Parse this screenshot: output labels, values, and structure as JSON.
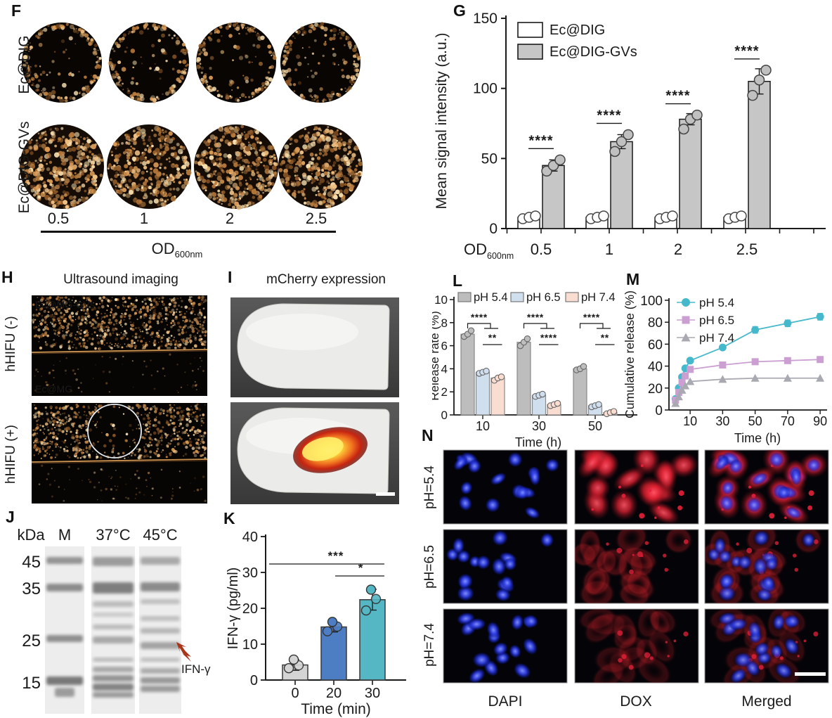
{
  "panels": {
    "F": {
      "label": "F",
      "row_labels": [
        "Ec@DIG",
        "Ec@DIG-GVs"
      ],
      "col_labels": [
        "0.5",
        "1",
        "2",
        "2.5"
      ],
      "axis_label": "OD",
      "axis_label_sub": "600nm"
    },
    "G": {
      "label": "G"
    },
    "H": {
      "label": "H",
      "title": "Ultrasound imaging",
      "row_labels": [
        "hHIFU (-)",
        "hHIFU (+)"
      ],
      "image_labels": [
        "Ec@MG-GVs",
        "Ec@MG"
      ]
    },
    "I": {
      "label": "I",
      "title": "mCherry expression"
    },
    "J": {
      "label": "J",
      "unit_header": "kDa",
      "lane_headers": [
        "M",
        "37°C",
        "45°C"
      ],
      "markers": [
        "45",
        "35",
        "25",
        "15"
      ],
      "arrow_label": "IFN-γ"
    },
    "K": {
      "label": "K"
    },
    "L": {
      "label": "L"
    },
    "M": {
      "label": "M"
    },
    "N": {
      "label": "N",
      "row_labels": [
        "pH=5.4",
        "pH=6.5",
        "pH=7.4"
      ],
      "col_labels": [
        "DAPI",
        "DOX",
        "Merged"
      ]
    }
  },
  "chart_data": [
    {
      "panel": "G",
      "type": "bar",
      "grouped": true,
      "ylabel": "Mean signal intensity (a.u.)",
      "xlabel": "OD",
      "xlabel_sub": "600nm",
      "ylim": [
        0,
        150
      ],
      "yticks": [
        0,
        50,
        100,
        150
      ],
      "categories": [
        "0.5",
        "1",
        "2",
        "2.5"
      ],
      "series": [
        {
          "name": "Ec@DIG",
          "color": "#ffffff",
          "values": [
            8,
            8,
            8,
            8
          ],
          "points": [
            [
              7,
              8,
              9
            ],
            [
              7,
              8,
              9
            ],
            [
              7,
              8,
              9
            ],
            [
              7,
              8,
              9
            ]
          ]
        },
        {
          "name": "Ec@DIG-GVs",
          "color": "#c6c6c6",
          "values": [
            45,
            62,
            78,
            105
          ],
          "errors": [
            4,
            5,
            4,
            9
          ],
          "points": [
            [
              41,
              45,
              49
            ],
            [
              55,
              62,
              67
            ],
            [
              71,
              78,
              81
            ],
            [
              95,
              106,
              113
            ]
          ]
        }
      ],
      "significance": [
        "****",
        "****",
        "****",
        "****"
      ],
      "legend_position": "top-left",
      "grid": false
    },
    {
      "panel": "K",
      "type": "bar",
      "ylabel": "IFN-γ (pg/ml)",
      "xlabel": "Time (min)",
      "ylim": [
        0,
        40
      ],
      "yticks": [
        0,
        10,
        20,
        30,
        40
      ],
      "categories": [
        "0",
        "20",
        "30"
      ],
      "values": [
        4.2,
        14.8,
        22.4
      ],
      "errors": [
        1.5,
        1.4,
        2.9
      ],
      "points": [
        [
          3.3,
          4.1,
          5.7
        ],
        [
          13.6,
          14.9,
          16.2
        ],
        [
          19.4,
          22.6,
          25.2
        ]
      ],
      "colors": [
        "#d4d4d4",
        "#4d7ec3",
        "#55b6c4"
      ],
      "significance": [
        {
          "from": 0,
          "to": 2,
          "label": "***"
        },
        {
          "from": 1,
          "to": 2,
          "label": "*"
        }
      ],
      "grid": false
    },
    {
      "panel": "L",
      "type": "bar",
      "grouped": true,
      "ylabel": "Release rate (%)",
      "xlabel": "Time (h)",
      "ylim": [
        0,
        10
      ],
      "yticks": [
        0,
        2,
        4,
        6,
        8,
        10
      ],
      "categories": [
        "10",
        "30",
        "50"
      ],
      "series": [
        {
          "name": "pH 5.4",
          "color": "#bdbdbd",
          "values": [
            7.0,
            6.3,
            4.0
          ],
          "points": [
            [
              6.8,
              7.0,
              7.3
            ],
            [
              6.0,
              6.3,
              6.6
            ],
            [
              3.9,
              4.0,
              4.2
            ]
          ]
        },
        {
          "name": "pH 6.5",
          "color": "#cfdfee",
          "values": [
            3.7,
            1.7,
            0.8
          ],
          "points": [
            [
              3.6,
              3.7,
              3.8
            ],
            [
              1.6,
              1.7,
              1.8
            ],
            [
              0.7,
              0.8,
              0.9
            ]
          ]
        },
        {
          "name": "pH 7.4",
          "color": "#f9ddd0",
          "values": [
            3.2,
            0.9,
            0.2
          ],
          "points": [
            [
              3.0,
              3.2,
              3.3
            ],
            [
              0.8,
              0.9,
              1.0
            ],
            [
              0.1,
              0.2,
              0.3
            ]
          ]
        }
      ],
      "significance_bracket": [
        "****",
        "****",
        "****"
      ],
      "significance_pair": [
        "**",
        "****",
        "**"
      ],
      "legend_position": "top",
      "grid": false
    },
    {
      "panel": "M",
      "type": "line",
      "ylabel": "Cumulative release (%)",
      "xlabel": "Time (h)",
      "ylim": [
        0,
        100
      ],
      "yticks": [
        0,
        20,
        40,
        60,
        80,
        100
      ],
      "xticks": [
        10,
        30,
        50,
        70,
        90
      ],
      "x": [
        1,
        3,
        5,
        7,
        10,
        30,
        50,
        70,
        90
      ],
      "series": [
        {
          "name": "pH 5.4",
          "marker": "circle",
          "color": "#45b9cb",
          "values": [
            10,
            20,
            30,
            38,
            45,
            57,
            73,
            79,
            85
          ],
          "errors": [
            2,
            2,
            2,
            2,
            2,
            2,
            3,
            3,
            3
          ]
        },
        {
          "name": "pH 6.5",
          "marker": "square",
          "color": "#cb9fd2",
          "values": [
            9,
            16,
            25,
            31,
            37,
            41,
            44,
            45,
            46
          ],
          "errors": [
            1,
            1,
            1,
            1,
            1,
            1,
            1,
            1,
            2
          ]
        },
        {
          "name": "pH 7.4",
          "marker": "triangle",
          "color": "#a9a9b2",
          "values": [
            6,
            12,
            18,
            22,
            26,
            28,
            29,
            29,
            29
          ],
          "errors": [
            1,
            1,
            1,
            1,
            1,
            1,
            1,
            1,
            1
          ]
        }
      ],
      "legend_position": "top-left",
      "grid": false
    }
  ]
}
